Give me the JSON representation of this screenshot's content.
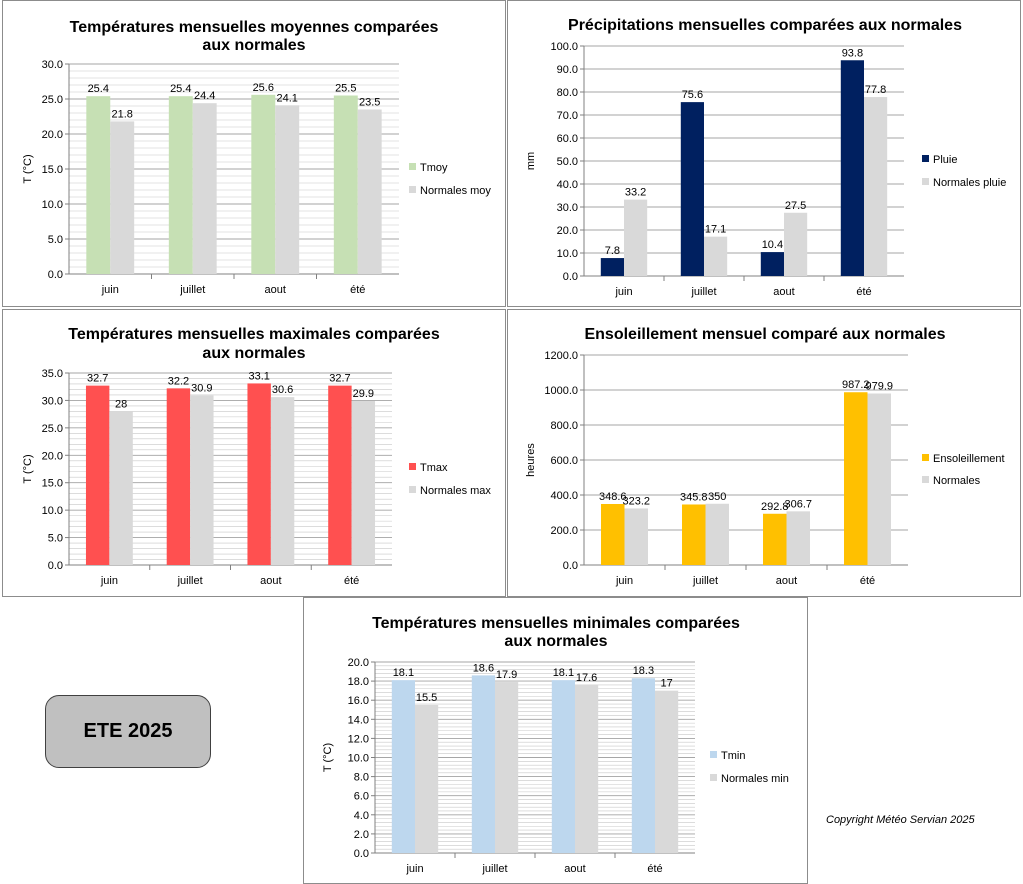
{
  "chart_data": [
    {
      "id": "tmoy",
      "type": "bar",
      "title": [
        "Températures mensuelles moyennes comparées",
        "aux normales"
      ],
      "categories": [
        "juin",
        "juillet",
        "aout",
        "été"
      ],
      "series": [
        {
          "name": "Tmoy",
          "values": [
            25.4,
            25.4,
            25.6,
            25.5
          ],
          "labels": [
            "25.4",
            "25.4",
            "25.6",
            "25.5"
          ],
          "color": "#c6e0b4"
        },
        {
          "name": "Normales moy",
          "values": [
            21.8,
            24.4,
            24.1,
            23.5
          ],
          "labels": [
            "21.8",
            "24.4",
            "24.1",
            "23.5"
          ],
          "color": "#d9d9d9"
        }
      ],
      "ylabel": "T (°C)",
      "ylim": [
        0,
        30
      ],
      "yticks": [
        "0.0",
        "5.0",
        "10.0",
        "15.0",
        "20.0",
        "25.0",
        "30.0"
      ],
      "minor_grid_step": 1,
      "legend": "right"
    },
    {
      "id": "rain",
      "type": "bar",
      "title": [
        "Précipitations mensuelles comparées aux normales"
      ],
      "categories": [
        "juin",
        "juillet",
        "aout",
        "été"
      ],
      "series": [
        {
          "name": "Pluie",
          "values": [
            7.8,
            75.6,
            10.4,
            93.8
          ],
          "labels": [
            "7.8",
            "75.6",
            "10.4",
            "93.8"
          ],
          "color": "#002060"
        },
        {
          "name": "Normales pluie",
          "values": [
            33.2,
            17.1,
            27.5,
            77.8
          ],
          "labels": [
            "33.2",
            "17.1",
            "27.5",
            "77.8"
          ],
          "color": "#d9d9d9"
        }
      ],
      "ylabel": "mm",
      "ylim": [
        0,
        100
      ],
      "yticks": [
        "0.0",
        "10.0",
        "20.0",
        "30.0",
        "40.0",
        "50.0",
        "60.0",
        "70.0",
        "80.0",
        "90.0",
        "100.0"
      ],
      "minor_grid_step": 0,
      "legend": "right"
    },
    {
      "id": "tmax",
      "type": "bar",
      "title": [
        "Températures mensuelles maximales comparées",
        "aux normales"
      ],
      "categories": [
        "juin",
        "juillet",
        "aout",
        "été"
      ],
      "series": [
        {
          "name": "Tmax",
          "values": [
            32.7,
            32.2,
            33.1,
            32.7
          ],
          "labels": [
            "32.7",
            "32.2",
            "33.1",
            "32.7"
          ],
          "color": "#ff5050"
        },
        {
          "name": "Normales max",
          "values": [
            28,
            30.9,
            30.6,
            29.9
          ],
          "labels": [
            "28",
            "30.9",
            "30.6",
            "29.9"
          ],
          "color": "#d9d9d9"
        }
      ],
      "ylabel": "T (°C)",
      "ylim": [
        0,
        35
      ],
      "yticks": [
        "0.0",
        "5.0",
        "10.0",
        "15.0",
        "20.0",
        "25.0",
        "30.0",
        "35.0"
      ],
      "minor_grid_step": 1,
      "legend": "right"
    },
    {
      "id": "sun",
      "type": "bar",
      "title": [
        "Ensoleillement mensuel comparé aux normales"
      ],
      "categories": [
        "juin",
        "juillet",
        "aout",
        "été"
      ],
      "series": [
        {
          "name": "Ensoleillement",
          "values": [
            348.6,
            345.8,
            292.8,
            987.2
          ],
          "labels": [
            "348.6",
            "345.8",
            "292.8",
            "987.2"
          ],
          "color": "#ffc000"
        },
        {
          "name": "Normales",
          "values": [
            323.2,
            350,
            306.7,
            979.9
          ],
          "labels": [
            "323.2",
            "350",
            "306.7",
            "979.9"
          ],
          "color": "#d9d9d9"
        }
      ],
      "ylabel": "heures",
      "ylim": [
        0,
        1200
      ],
      "yticks": [
        "0.0",
        "200.0",
        "400.0",
        "600.0",
        "800.0",
        "1000.0",
        "1200.0"
      ],
      "minor_grid_step": 0,
      "legend": "right"
    },
    {
      "id": "tmin",
      "type": "bar",
      "title": [
        "Températures mensuelles minimales comparées",
        "aux normales"
      ],
      "categories": [
        "juin",
        "juillet",
        "aout",
        "été"
      ],
      "series": [
        {
          "name": "Tmin",
          "values": [
            18.1,
            18.6,
            18.1,
            18.3
          ],
          "labels": [
            "18.1",
            "18.6",
            "18.1",
            "18.3"
          ],
          "color": "#bdd7ee"
        },
        {
          "name": "Normales min",
          "values": [
            15.5,
            17.9,
            17.6,
            17
          ],
          "labels": [
            "15.5",
            "17.9",
            "17.6",
            "17"
          ],
          "color": "#d9d9d9"
        }
      ],
      "ylabel": "T (°C)",
      "ylim": [
        0,
        20
      ],
      "yticks": [
        "0.0",
        "2.0",
        "4.0",
        "6.0",
        "8.0",
        "10.0",
        "12.0",
        "14.0",
        "16.0",
        "18.0",
        "20.0"
      ],
      "minor_grid_step": 0.4,
      "legend": "right"
    }
  ],
  "badge": {
    "label": "ETE 2025"
  },
  "footer": {
    "copyright": "Copyright Météo Servian 2025"
  },
  "colors": {
    "grid": "#a6a6a6",
    "axis": "#808080"
  }
}
